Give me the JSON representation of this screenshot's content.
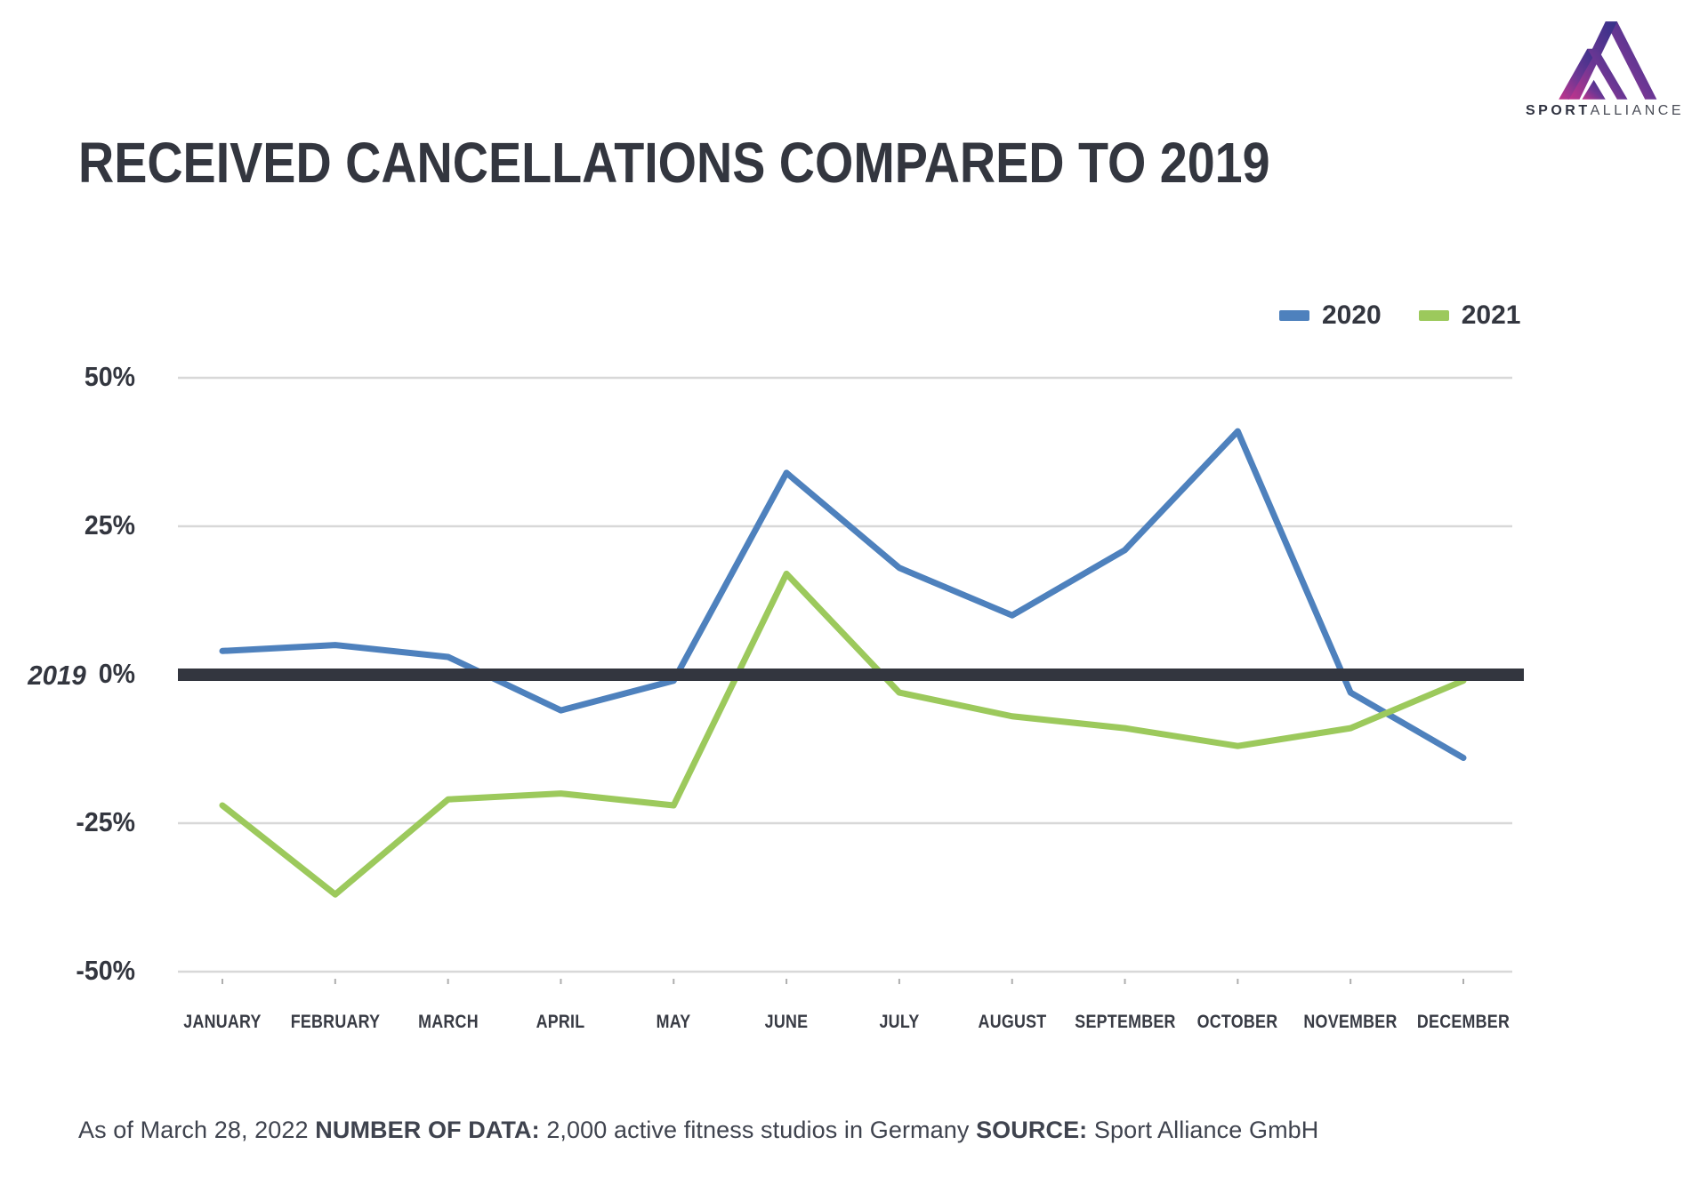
{
  "logo": {
    "sport": "SPORT",
    "alliance": "ALLIANCE"
  },
  "title": "RECEIVED CANCELLATIONS COMPARED TO 2019",
  "legend": [
    {
      "label": "2020",
      "color": "#4E81BD"
    },
    {
      "label": "2021",
      "color": "#9CC95C"
    }
  ],
  "baseline_label": "2019",
  "footer": {
    "segments": [
      {
        "text": "As of March 28, 2022 ",
        "bold": false
      },
      {
        "text": "NUMBER OF DATA:",
        "bold": true
      },
      {
        "text": " 2,000 active fitness studios in Germany ",
        "bold": false
      },
      {
        "text": "SOURCE:",
        "bold": true
      },
      {
        "text": " Sport Alliance GmbH",
        "bold": false
      }
    ]
  },
  "chart_data": {
    "type": "line",
    "title": "RECEIVED CANCELLATIONS COMPARED TO 2019",
    "xlabel": "",
    "ylabel": "",
    "categories": [
      "JANUARY",
      "FEBRUARY",
      "MARCH",
      "APRIL",
      "MAY",
      "JUNE",
      "JULY",
      "AUGUST",
      "SEPTEMBER",
      "OCTOBER",
      "NOVEMBER",
      "DECEMBER"
    ],
    "series": [
      {
        "name": "2020",
        "color": "#4E81BD",
        "values": [
          4,
          5,
          3,
          -6,
          -1,
          34,
          18,
          10,
          21,
          41,
          -3,
          -14
        ]
      },
      {
        "name": "2021",
        "color": "#9CC95C",
        "values": [
          -22,
          -37,
          -21,
          -20,
          -22,
          17,
          -3,
          -7,
          -9,
          -12,
          -9,
          -1
        ]
      }
    ],
    "ytick_values": [
      50,
      25,
      0,
      -25,
      -50
    ],
    "ytick_labels": [
      "50%",
      "25%",
      "0%",
      "-25%",
      "-50%"
    ],
    "ylim": [
      -50,
      50
    ],
    "unit": "percent",
    "baseline": {
      "label": "2019",
      "value": 0
    },
    "grid": "horizontal",
    "legend_position": "top-right"
  },
  "colors": {
    "text_dark": "#33363f",
    "gridline": "#d8d8d8",
    "baseline": "#33363f",
    "tick": "#aeaeae",
    "logo_gradient": [
      "#C2348C",
      "#6E3794",
      "#333189"
    ]
  }
}
